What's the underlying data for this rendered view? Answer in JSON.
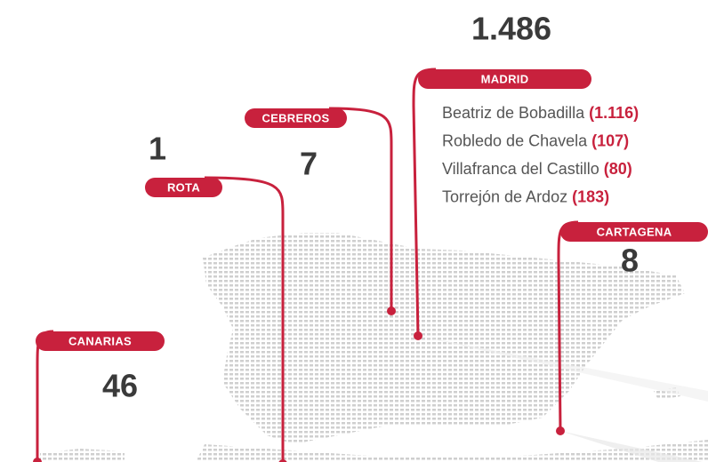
{
  "locations": [
    {
      "name": "MADRID",
      "total": "1.486",
      "sites": [
        {
          "name": "Beatriz de Bobadilla",
          "count": "(1.116)"
        },
        {
          "name": "Robledo de Chavela",
          "count": "(107)"
        },
        {
          "name": "Villafranca del Castillo",
          "count": "(80)"
        },
        {
          "name": "Torrejón de Ardoz",
          "count": "(183)"
        }
      ]
    },
    {
      "name": "CEBREROS",
      "total": "7"
    },
    {
      "name": "ROTA",
      "total": "1"
    },
    {
      "name": "CANARIAS",
      "total": "46"
    },
    {
      "name": "CARTAGENA",
      "total": "8"
    }
  ]
}
